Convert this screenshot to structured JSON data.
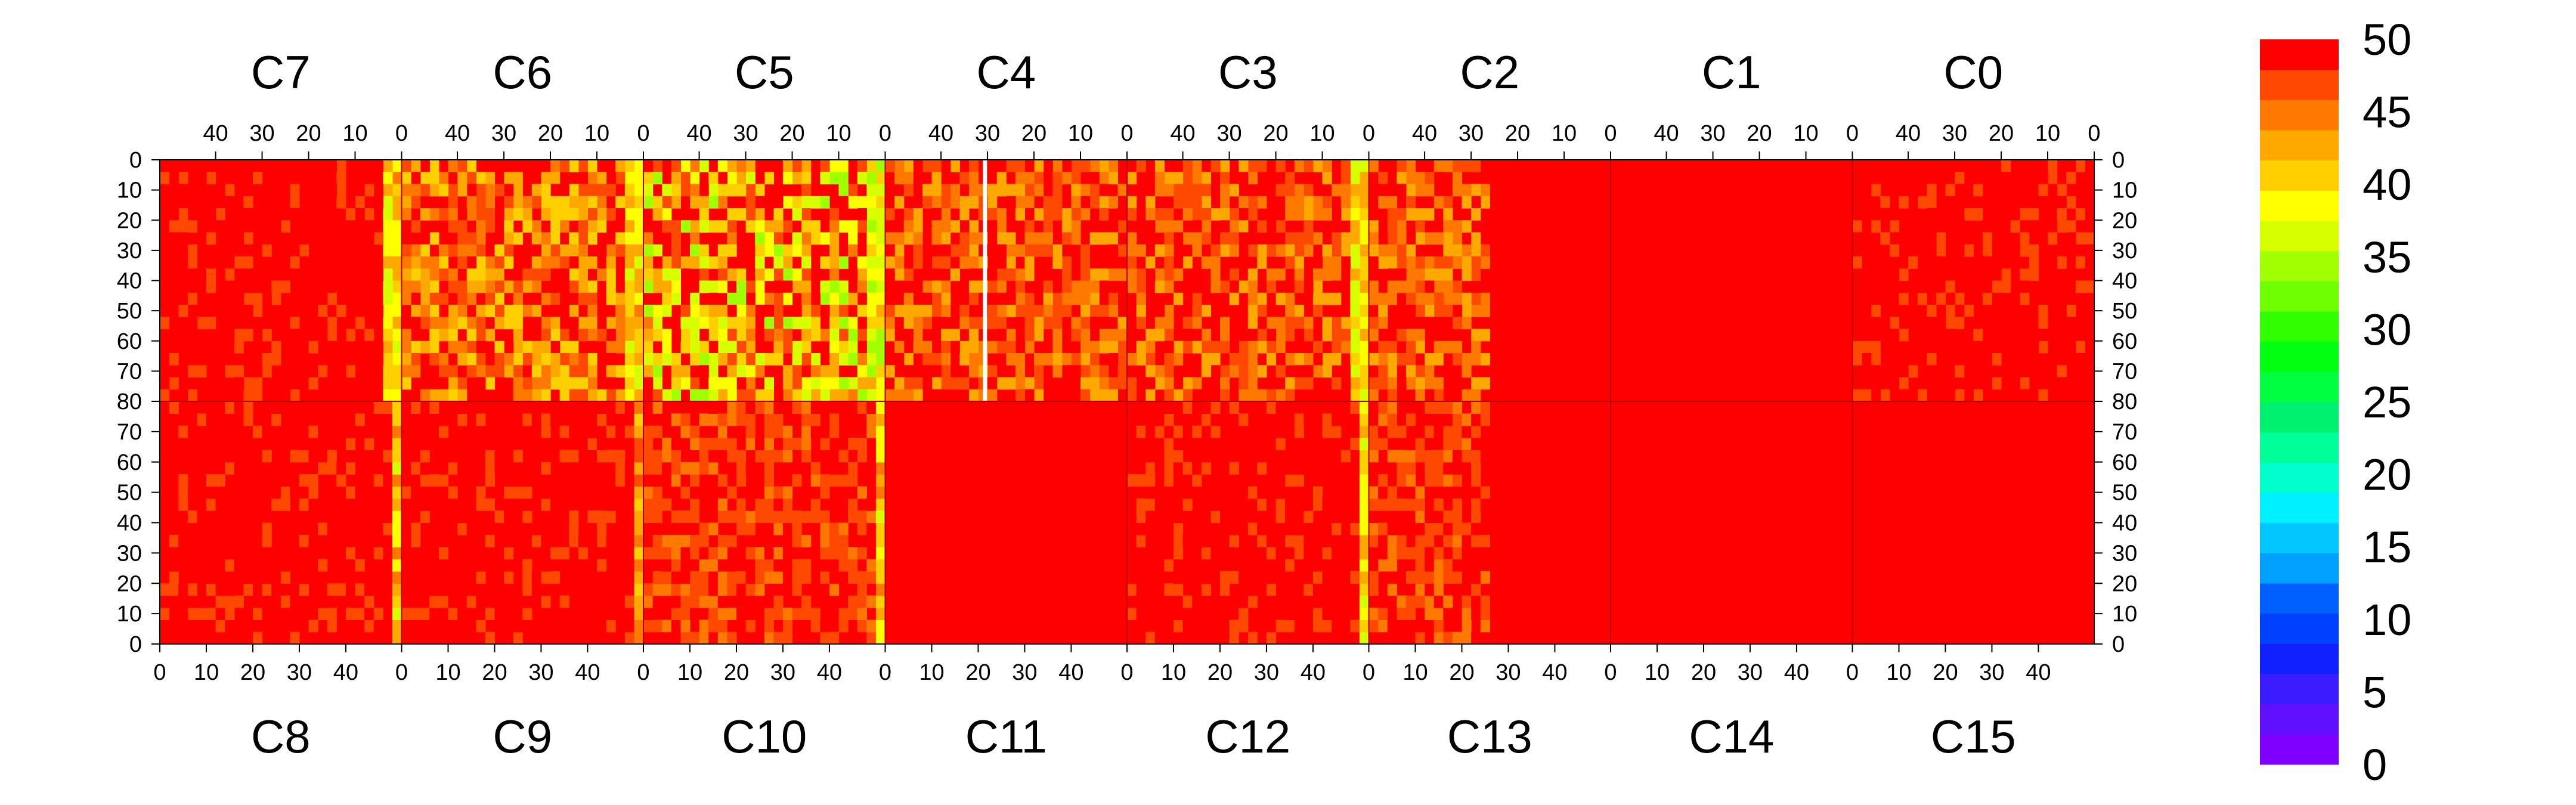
{
  "chart_data": {
    "type": "heatmap",
    "title": "",
    "zlim": [
      0,
      50
    ],
    "colorbar": {
      "tick_labels": [
        "50",
        "45",
        "40",
        "35",
        "30",
        "25",
        "20",
        "15",
        "10",
        "5",
        "0"
      ],
      "colors": [
        "#7f00ff",
        "#6010ff",
        "#3a1cff",
        "#1020ff",
        "#0040ff",
        "#0060ff",
        "#00a0ff",
        "#00c8ff",
        "#00f0ff",
        "#00ffcc",
        "#00ff99",
        "#00f070",
        "#00ff40",
        "#00ff10",
        "#30ff00",
        "#70ff00",
        "#a0ff00",
        "#d8ff00",
        "#ffff00",
        "#ffd000",
        "#ffa800",
        "#ff7800",
        "#ff4800",
        "#ff0000"
      ]
    },
    "top_panel": {
      "chips": [
        "C7",
        "C6",
        "C5",
        "C4",
        "C3",
        "C2",
        "C1",
        "C0"
      ],
      "x_tick_labels": [
        "40",
        "30",
        "20",
        "10",
        "0"
      ],
      "x_tick_values": [
        40,
        30,
        20,
        10,
        0
      ],
      "x_range": [
        52,
        0
      ],
      "y_tick_labels": [
        "0",
        "10",
        "20",
        "30",
        "40",
        "50",
        "60",
        "70",
        "80"
      ],
      "y_range": [
        0,
        80
      ],
      "mean_value_by_column_group": [
        {
          "chip": "C7",
          "bulk": 49,
          "edge_stripe_at_x": 1,
          "edge_value": 40
        },
        {
          "chip": "C6",
          "bulk": 46,
          "edge_stripe_at_x": 1,
          "edge_value": 40
        },
        {
          "chip": "C5",
          "bulk": 44,
          "edge_stripe_at_x": 1,
          "edge_value": 38
        },
        {
          "chip": "C4",
          "bulk": 47,
          "dead_column_at_x": 30
        },
        {
          "chip": "C3",
          "bulk": 47,
          "edge_stripe_at_x": 1,
          "edge_value": 40
        },
        {
          "chip": "C2",
          "bulk_x_below_25": 50,
          "bulk_x_above_25": 47
        },
        {
          "chip": "C1",
          "bulk": 50
        },
        {
          "chip": "C0",
          "bulk": 49
        }
      ]
    },
    "bottom_panel": {
      "chips": [
        "C8",
        "C9",
        "C10",
        "C11",
        "C12",
        "C13",
        "C14",
        "C15"
      ],
      "x_tick_labels": [
        "0",
        "10",
        "20",
        "30",
        "40"
      ],
      "x_tick_values": [
        0,
        10,
        20,
        30,
        40
      ],
      "x_range": [
        0,
        52
      ],
      "y_tick_labels": [
        "0",
        "10",
        "20",
        "30",
        "40",
        "50",
        "60",
        "70"
      ],
      "y_range": [
        0,
        80
      ],
      "mean_value_by_column_group": [
        {
          "chip": "C8",
          "bulk": 49,
          "edge_stripe_at_x": 51,
          "edge_value": 41
        },
        {
          "chip": "C9",
          "bulk": 49,
          "edge_stripe_at_x": 51,
          "edge_value": 44
        },
        {
          "chip": "C10",
          "bulk": 48,
          "edge_stripe_at_x": 51,
          "edge_value": 41
        },
        {
          "chip": "C11",
          "bulk": 50
        },
        {
          "chip": "C12",
          "bulk": 49,
          "edge_stripe_at_x": 51,
          "edge_value": 40
        },
        {
          "chip": "C13",
          "bulk_x_below_25": 48,
          "bulk_x_above_25": 50
        },
        {
          "chip": "C14",
          "bulk": 50
        },
        {
          "chip": "C15",
          "bulk": 50
        }
      ]
    },
    "right_axis_tick_labels_top": [
      "0",
      "10",
      "20",
      "30",
      "40",
      "50",
      "60",
      "70",
      "80"
    ],
    "right_axis_tick_labels_bottom": [
      "70",
      "60",
      "50",
      "40",
      "30",
      "20",
      "10",
      "0"
    ]
  }
}
